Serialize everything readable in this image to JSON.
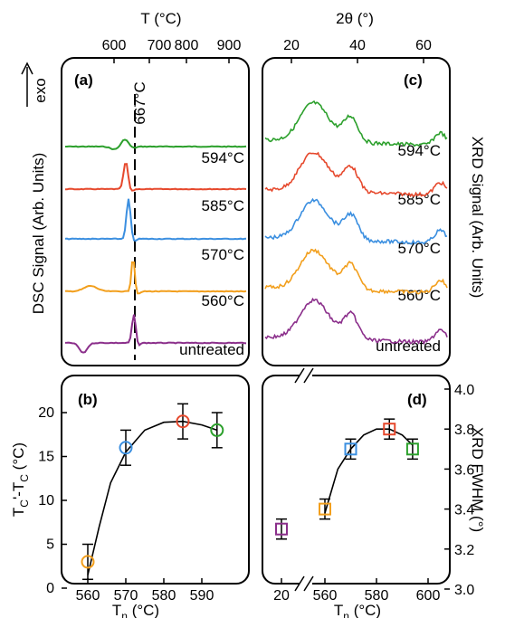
{
  "chart_data": [
    {
      "panel": "(a)",
      "type": "line",
      "xlabel_top": "T (°C)",
      "xticks_top": [
        "600",
        "700",
        "800",
        "900"
      ],
      "ylabel": "DSC Signal (Arb. Units)",
      "arrow_label": "exo",
      "marker_label": "667°C",
      "marker_x": 667,
      "series": [
        {
          "name": "594°C",
          "color": "#2ca02c",
          "peak_x": 655,
          "baseline_y": 162
        },
        {
          "name": "585°C",
          "color": "#e6492d",
          "peak_x": 650,
          "baseline_y": 209
        },
        {
          "name": "570°C",
          "color": "#3b8fe0",
          "peak_x": 645,
          "baseline_y": 264
        },
        {
          "name": "560°C",
          "color": "#f29f1d",
          "peak_x": 667,
          "baseline_y": 322
        },
        {
          "name": "untreated",
          "color": "#8b2f8b",
          "peak_x": 668,
          "baseline_y": 379
        }
      ]
    },
    {
      "panel": "(c)",
      "type": "line",
      "xlabel_top": "2θ (°)",
      "xticks_top": [
        "20",
        "40",
        "60"
      ],
      "ylabel": "XRD Signal (Arb. Units)",
      "series": [
        {
          "name": "594°C",
          "color": "#2ca02c"
        },
        {
          "name": "585°C",
          "color": "#e6492d"
        },
        {
          "name": "570°C",
          "color": "#3b8fe0"
        },
        {
          "name": "560°C",
          "color": "#f29f1d"
        },
        {
          "name": "untreated",
          "color": "#8b2f8b"
        }
      ]
    },
    {
      "panel": "(b)",
      "type": "scatter",
      "xlabel": "T",
      "xlabel_sub": "n",
      "xlabel_unit": " (°C)",
      "ylabel": "T",
      "ylabel_rest": " (°C)",
      "xlim": [
        556,
        597
      ],
      "ylim": [
        0,
        22
      ],
      "xticks": [
        560,
        570,
        580,
        590
      ],
      "yticks": [
        0,
        5,
        10,
        15,
        20
      ],
      "points": [
        {
          "x": 560,
          "y": 3,
          "err": 2,
          "color": "#f29f1d"
        },
        {
          "x": 570,
          "y": 16,
          "err": 2,
          "color": "#3b8fe0"
        },
        {
          "x": 585,
          "y": 19,
          "err": 2,
          "color": "#e6492d"
        },
        {
          "x": 594,
          "y": 18,
          "err": 2,
          "color": "#2ca02c"
        }
      ],
      "fit": [
        [
          560,
          1.5
        ],
        [
          563,
          7
        ],
        [
          566,
          12
        ],
        [
          570,
          15.5
        ],
        [
          575,
          18
        ],
        [
          580,
          18.9
        ],
        [
          585,
          19
        ],
        [
          590,
          18.6
        ],
        [
          594,
          18
        ]
      ]
    },
    {
      "panel": "(d)",
      "type": "scatter",
      "xlabel": "T",
      "xlabel_sub": "n",
      "xlabel_unit": " (°C)",
      "ylabel": "XRD FWHM (°)",
      "xticks": [
        "20",
        "560",
        "580",
        "600"
      ],
      "ylim": [
        3.0,
        4.0
      ],
      "yticks": [
        "3.0",
        "3.2",
        "3.4",
        "3.6",
        "3.8",
        "4.0"
      ],
      "axis_break": true,
      "points": [
        {
          "x": 20,
          "y": 3.3,
          "err": 0.05,
          "color": "#8b2f8b"
        },
        {
          "x": 560,
          "y": 3.4,
          "err": 0.05,
          "color": "#f29f1d"
        },
        {
          "x": 570,
          "y": 3.7,
          "err": 0.05,
          "color": "#3b8fe0"
        },
        {
          "x": 585,
          "y": 3.8,
          "err": 0.05,
          "color": "#e6492d"
        },
        {
          "x": 594,
          "y": 3.7,
          "err": 0.05,
          "color": "#2ca02c"
        }
      ],
      "fit": [
        [
          560,
          3.38
        ],
        [
          565,
          3.6
        ],
        [
          570,
          3.7
        ],
        [
          575,
          3.77
        ],
        [
          580,
          3.8
        ],
        [
          585,
          3.8
        ],
        [
          590,
          3.77
        ],
        [
          594,
          3.72
        ]
      ]
    }
  ]
}
